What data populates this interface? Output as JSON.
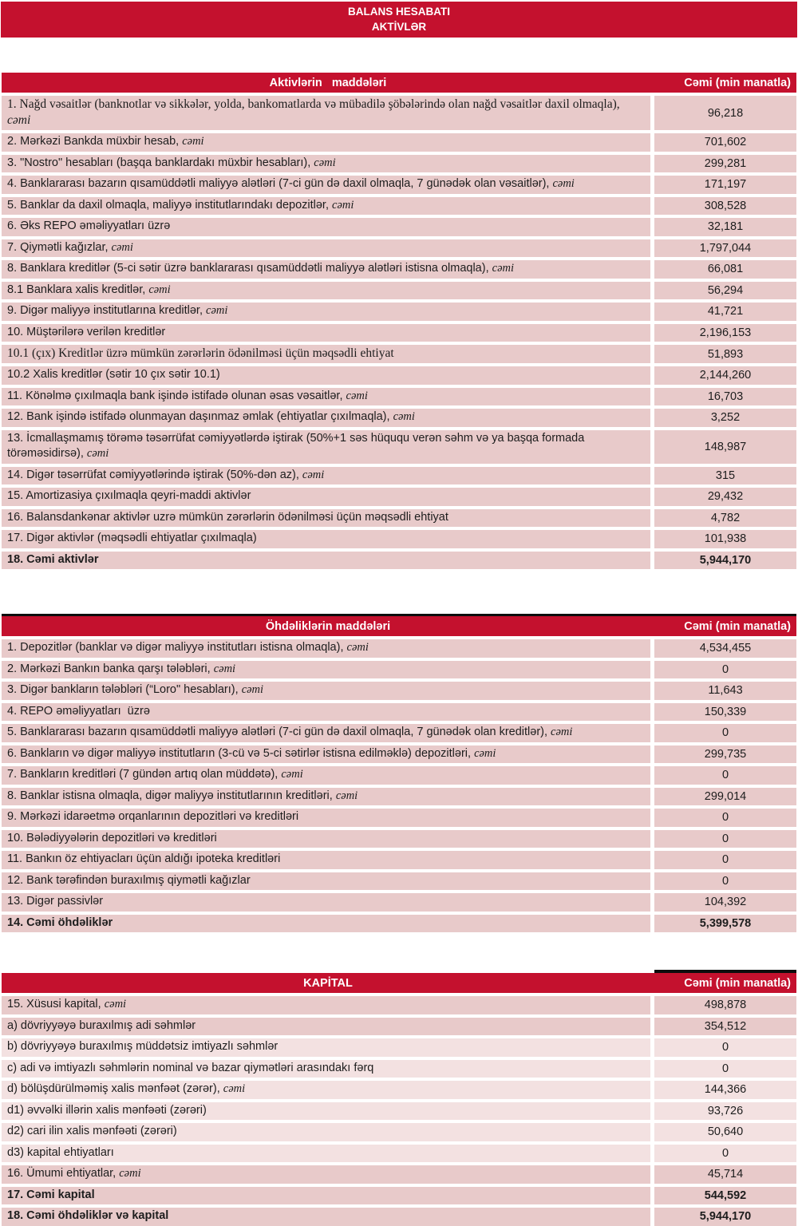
{
  "page_title": {
    "line1": "BALANS HESABATI",
    "line2": "AKTİVLƏR"
  },
  "colors": {
    "header_red": "#c4112e",
    "row_pink": "#e8caca",
    "row_pink_light": "#f3e1e1",
    "cap_black": "#0d0d0d",
    "header_text": "#ffffff",
    "body_text": "#1d1d1d"
  },
  "tables": [
    {
      "id": "assets",
      "header": {
        "label": "Aktivlərin   maddələri",
        "value": "Cəmi (min manatla)"
      },
      "rows": [
        {
          "label": "1. Nağd vəsaitlər (banknotlar və sikkələr, yolda, bankomatlarda və mübadilə şöbələrində olan nağd vəsaitlər daxil olmaqla), ",
          "em": "cəmi",
          "value": "96,218",
          "serif": true,
          "bold": false,
          "tone": "normal"
        },
        {
          "label": "2. Mərkəzi Bankda müxbir hesab, ",
          "em": "cəmi",
          "value": "701,602",
          "serif": false,
          "bold": false,
          "tone": "normal"
        },
        {
          "label": "3. \"Nostro\" hesabları (başqa banklardakı müxbir hesabları), ",
          "em": "cəmi",
          "value": "299,281",
          "serif": false,
          "bold": false,
          "tone": "normal"
        },
        {
          "label": "4. Banklararası bazarın qısamüddətli maliyyə alətləri (7-ci gün də daxil olmaqla, 7 günədək olan vəsaitlər), ",
          "em": "cəmi",
          "value": "171,197",
          "serif": false,
          "bold": false,
          "tone": "normal"
        },
        {
          "label": "5. Banklar da daxil olmaqla, maliyyə institutlarındakı depozitlər, ",
          "em": "cəmi",
          "value": "308,528",
          "serif": false,
          "bold": false,
          "tone": "normal"
        },
        {
          "label": "6. Əks REPO əməliyyatları üzrə",
          "em": "",
          "value": "32,181",
          "serif": false,
          "bold": false,
          "tone": "normal"
        },
        {
          "label": "7. Qiymətli kağızlar, ",
          "em": "cəmi",
          "value": "1,797,044",
          "serif": false,
          "bold": false,
          "tone": "normal"
        },
        {
          "label": "8. Banklara kreditlər (5-ci sətir üzrə banklararası qısamüddətli maliyyə alətləri istisna olmaqla), ",
          "em": "cəmi",
          "value": "66,081",
          "serif": false,
          "bold": false,
          "tone": "normal"
        },
        {
          "label": "8.1 Banklara xalis kreditlər, ",
          "em": "cəmi",
          "value": "56,294",
          "serif": false,
          "bold": false,
          "tone": "normal"
        },
        {
          "label": "9. Digər maliyyə institutlarına kreditlər, ",
          "em": "cəmi",
          "value": "41,721",
          "serif": false,
          "bold": false,
          "tone": "normal"
        },
        {
          "label": "10. Müştərilərə verilən kreditlər",
          "em": "",
          "value": "2,196,153",
          "serif": false,
          "bold": false,
          "tone": "normal"
        },
        {
          "label": "10.1 (çıx) Kreditlər üzrə mümkün zərərlərin ödənilməsi üçün məqsədli ehtiyat",
          "em": "",
          "value": "51,893",
          "serif": true,
          "bold": false,
          "tone": "normal"
        },
        {
          "label": "10.2 Xalis kreditlər (sətir 10 çıx sətir 10.1)",
          "em": "",
          "value": "2,144,260",
          "serif": false,
          "bold": false,
          "tone": "normal"
        },
        {
          "label": "11. Könəlmə çıxılmaqla bank işində istifadə olunan əsas vəsaitlər, ",
          "em": "cəmi",
          "value": "16,703",
          "serif": false,
          "bold": false,
          "tone": "normal"
        },
        {
          "label": "12. Bank işində istifadə olunmayan daşınmaz əmlak (ehtiyatlar çıxılmaqla), ",
          "em": "cəmi",
          "value": "3,252",
          "serif": false,
          "bold": false,
          "tone": "normal"
        },
        {
          "label": "13. İcmallaşmamış törəmə təsərrüfat cəmiyyətlərdə iştirak (50%+1 səs hüququ verən səhm və ya başqa formada törəməsidirsə), ",
          "em": "cəmi",
          "value": "148,987",
          "serif": false,
          "bold": false,
          "tone": "normal"
        },
        {
          "label": "14. Digər təsərrüfat cəmiyyətlərində iştirak (50%-dən az), ",
          "em": "cəmi",
          "value": "315",
          "serif": false,
          "bold": false,
          "tone": "normal"
        },
        {
          "label": "15. Amortizasiya çıxılmaqla qeyri-maddi aktivlər",
          "em": "",
          "value": "29,432",
          "serif": false,
          "bold": false,
          "tone": "normal"
        },
        {
          "label": "16. Balansdankənar aktivlər uzrə mümkün zərərlərin ödənilməsi üçün məqsədli ehtiyat",
          "em": "",
          "value": "4,782",
          "serif": false,
          "bold": false,
          "tone": "normal"
        },
        {
          "label": "17. Digər aktivlər (məqsədli ehtiyatlar çıxılmaqla)",
          "em": "",
          "value": "101,938",
          "serif": false,
          "bold": false,
          "tone": "normal"
        },
        {
          "label": "18. Cəmi aktivlər",
          "em": "",
          "value": "5,944,170",
          "serif": false,
          "bold": true,
          "tone": "normal"
        }
      ]
    },
    {
      "id": "liabilities",
      "header": {
        "label": "Öhdəliklərin maddələri",
        "value": "Cəmi (min manatla)"
      },
      "rows": [
        {
          "label": "1. Depozitlər (banklar və digər maliyyə institutları istisna olmaqla), ",
          "em": "cəmi",
          "value": "4,534,455",
          "serif": false,
          "bold": false,
          "tone": "normal"
        },
        {
          "label": "2. Mərkəzi Bankın banka qarşı tələbləri, ",
          "em": "cəmi",
          "value": "0",
          "serif": false,
          "bold": false,
          "tone": "normal"
        },
        {
          "label": "3. Digər bankların tələbləri (“Loro\" hesabları), ",
          "em": "cəmi",
          "value": "11,643",
          "serif": false,
          "bold": false,
          "tone": "normal"
        },
        {
          "label": "4. REPO əməliyyatları  üzrə",
          "em": "",
          "value": "150,339",
          "serif": false,
          "bold": false,
          "tone": "normal"
        },
        {
          "label": "5. Banklararası bazarın qısamüddətli maliyyə alətləri (7-ci gün də daxil olmaqla, 7 günədək olan kreditlər), ",
          "em": "cəmi",
          "value": "0",
          "serif": false,
          "bold": false,
          "tone": "normal"
        },
        {
          "label": "6. Bankların və digər maliyyə institutların (3-cü və 5-ci sətirlər istisna edilməklə) depozitləri, ",
          "em": "cəmi",
          "value": "299,735",
          "serif": false,
          "bold": false,
          "tone": "normal"
        },
        {
          "label": "7. Bankların kreditləri (7 gündən artıq olan müddətə), ",
          "em": "cəmi",
          "value": "0",
          "serif": false,
          "bold": false,
          "tone": "normal"
        },
        {
          "label": "8. Banklar istisna olmaqla, digər maliyyə institutlarının kreditləri, ",
          "em": "cəmi",
          "value": "299,014",
          "serif": false,
          "bold": false,
          "tone": "normal"
        },
        {
          "label": "9. Mərkəzi idarəetmə orqanlarının depozitləri və kreditləri",
          "em": "",
          "value": "0",
          "serif": false,
          "bold": false,
          "tone": "normal"
        },
        {
          "label": "10. Bələdiyyələrin depozitləri və kreditləri",
          "em": "",
          "value": "0",
          "serif": false,
          "bold": false,
          "tone": "normal"
        },
        {
          "label": "11. Bankın öz ehtiyacları üçün aldığı ipoteka kreditləri",
          "em": "",
          "value": "0",
          "serif": false,
          "bold": false,
          "tone": "normal"
        },
        {
          "label": "12. Bank tərəfindən buraxılmış qiymətli kağızlar",
          "em": "",
          "value": "0",
          "serif": false,
          "bold": false,
          "tone": "normal"
        },
        {
          "label": "13. Digər passivlər",
          "em": "",
          "value": "104,392",
          "serif": false,
          "bold": false,
          "tone": "normal"
        },
        {
          "label": "14. Cəmi öhdəliklər",
          "em": "",
          "value": "5,399,578",
          "serif": false,
          "bold": true,
          "tone": "normal"
        }
      ]
    },
    {
      "id": "capital",
      "header": {
        "label": "KAPİTAL",
        "value": "Cəmi (min manatla)"
      },
      "rows": [
        {
          "label": "15. Xüsusi kapital, ",
          "em": "cəmi",
          "value": "498,878",
          "serif": false,
          "bold": false,
          "tone": "normal"
        },
        {
          "label": "a) dövriyyəyə buraxılmış adi səhmlər",
          "em": "",
          "value": "354,512",
          "serif": false,
          "bold": false,
          "tone": "normal"
        },
        {
          "label": "b) dövriyyəyə buraxılmış müddətsiz imtiyazlı səhmlər",
          "em": "",
          "value": "0",
          "serif": false,
          "bold": false,
          "tone": "light"
        },
        {
          "label": "c) adi və imtiyazlı səhmlərin nominal və bazar qiymətləri arasındakı fərq",
          "em": "",
          "value": "0",
          "serif": false,
          "bold": false,
          "tone": "light"
        },
        {
          "label": "d) bölüşdürülməmiş xalis mənfəət (zərər), ",
          "em": "cəmi",
          "value": "144,366",
          "serif": false,
          "bold": false,
          "tone": "light"
        },
        {
          "label": "d1) əvvəlki illərin xalis mənfəəti (zərəri)",
          "em": "",
          "value": "93,726",
          "serif": false,
          "bold": false,
          "tone": "light"
        },
        {
          "label": "d2) cari ilin xalis mənfəəti (zərəri)",
          "em": "",
          "value": "50,640",
          "serif": false,
          "bold": false,
          "tone": "light"
        },
        {
          "label": "d3) kapital ehtiyatları",
          "em": "",
          "value": "0",
          "serif": false,
          "bold": false,
          "tone": "light"
        },
        {
          "label": "16. Ümumi ehtiyatlar, ",
          "em": "cəmi",
          "value": "45,714",
          "serif": false,
          "bold": false,
          "tone": "normal"
        },
        {
          "label": "17. Cəmi kapital",
          "em": "",
          "value": "544,592",
          "serif": false,
          "bold": true,
          "tone": "normal"
        },
        {
          "label": "18. Cəmi öhdəliklər və kapital",
          "em": "",
          "value": "5,944,170",
          "serif": false,
          "bold": true,
          "tone": "normal"
        }
      ]
    }
  ]
}
